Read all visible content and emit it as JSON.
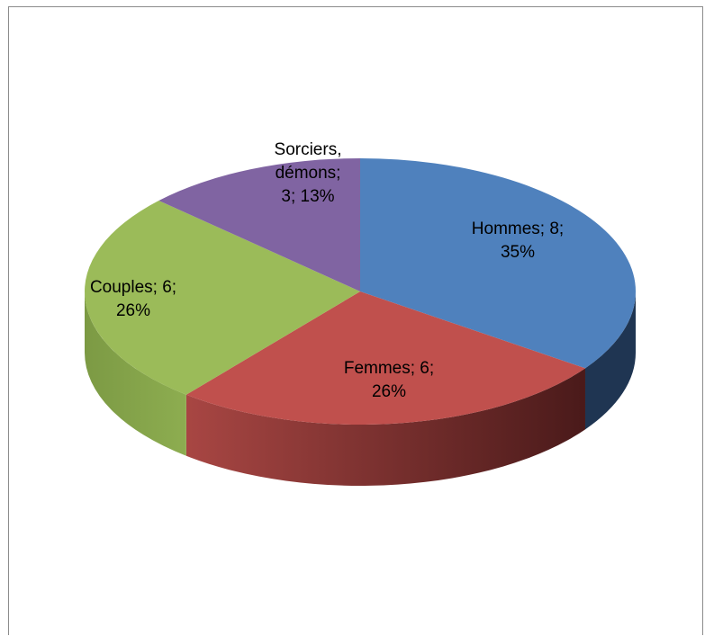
{
  "chart_data": {
    "type": "pie",
    "title": "",
    "three_d": true,
    "legend": "none",
    "slices": [
      {
        "name": "Hommes",
        "value": 8,
        "percent": 35,
        "label_lines": [
          "Hommes; 8;",
          "35%"
        ],
        "color": "#4F81BD",
        "side_color": "#1F3552"
      },
      {
        "name": "Femmes",
        "value": 6,
        "percent": 26,
        "label_lines": [
          "Femmes; 6;",
          "26%"
        ],
        "color": "#C0504D",
        "side_color": "#5A1E1E"
      },
      {
        "name": "Couples",
        "value": 6,
        "percent": 26,
        "label_lines": [
          "Couples; 6;",
          "26%"
        ],
        "color": "#9BBB59",
        "side_color": "#6E8A3A"
      },
      {
        "name": "Sorciers, démons",
        "value": 3,
        "percent": 13,
        "label_lines": [
          "Sorciers,",
          "démons;",
          "3; 13%"
        ],
        "color": "#8064A2",
        "side_color": "#4A3762"
      }
    ]
  }
}
